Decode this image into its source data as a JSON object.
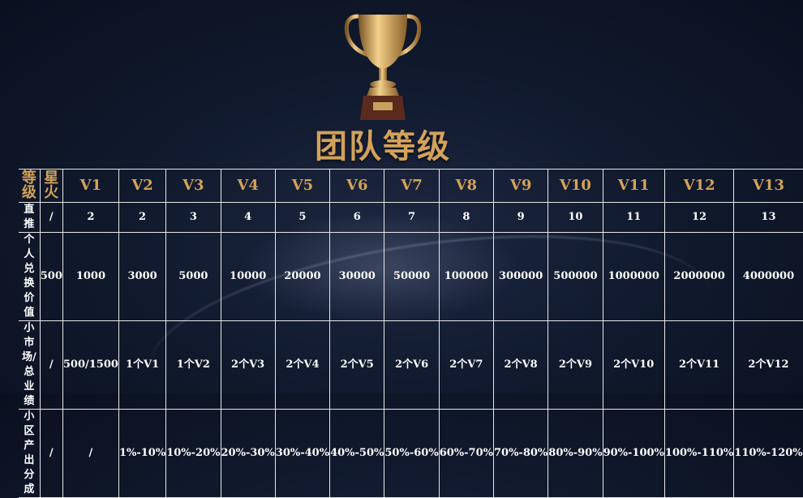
{
  "title": "团队等级",
  "colors": {
    "gold": "#d3a25a",
    "background": "#111a2e",
    "grid": "#e8e8e8"
  },
  "table": {
    "header": [
      "等级",
      "星火",
      "V1",
      "V2",
      "V3",
      "V4",
      "V5",
      "V6",
      "V7",
      "V8",
      "V9",
      "V10",
      "V11",
      "V12",
      "V13"
    ],
    "rows": [
      {
        "label": "直推",
        "cells": [
          "/",
          "2",
          "2",
          "3",
          "4",
          "5",
          "6",
          "7",
          "8",
          "9",
          "10",
          "11",
          "12",
          "13"
        ]
      },
      {
        "label": "个人兑换价值",
        "cells": [
          "500",
          "1000",
          "3000",
          "5000",
          "10000",
          "20000",
          "30000",
          "50000",
          "100000",
          "300000",
          "500000",
          "1000000",
          "2000000",
          "4000000"
        ]
      },
      {
        "label": "小市场/总业绩",
        "cells": [
          "/",
          "500/1500",
          "1个V1",
          "1个V2",
          "2个V3",
          "2个V4",
          "2个V5",
          "2个V6",
          "2个V7",
          "2个V8",
          "2个V9",
          "2个V10",
          "2个V11",
          "2个V12"
        ]
      },
      {
        "label": "小区产出分成",
        "cells": [
          "/",
          "/",
          "1%-10%",
          "10%-20%",
          "20%-30%",
          "30%-40%",
          "40%-50%",
          "50%-60%",
          "60%-70%",
          "70%-80%",
          "80%-90%",
          "90%-100%",
          "100%-110%",
          "110%-120%"
        ]
      }
    ]
  }
}
